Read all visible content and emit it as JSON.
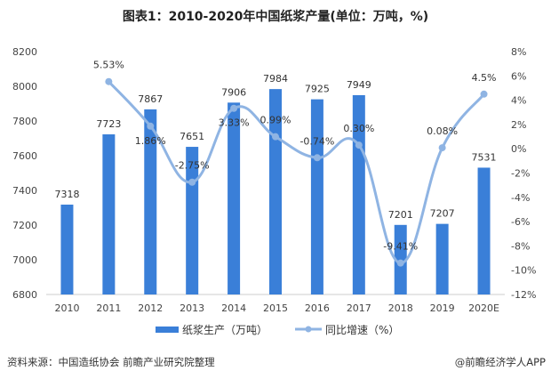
{
  "chart_data": {
    "type": "bar+line",
    "title": "图表1：2010-2020年中国纸浆产量(单位：万吨，%)",
    "categories": [
      "2010",
      "2011",
      "2012",
      "2013",
      "2014",
      "2015",
      "2016",
      "2017",
      "2018",
      "2019",
      "2020E"
    ],
    "series": [
      {
        "name": "纸浆生产（万吨）",
        "type": "bar",
        "axis": "left",
        "color": "#3a7fd8",
        "values": [
          7318,
          7723,
          7867,
          7651,
          7906,
          7984,
          7925,
          7949,
          7201,
          7207,
          7531
        ],
        "labels": [
          "7318",
          "7723",
          "7867",
          "7651",
          "7906",
          "7984",
          "7925",
          "7949",
          "7201",
          "7207",
          "7531"
        ]
      },
      {
        "name": "同比增速（%）",
        "type": "line",
        "axis": "right",
        "color": "#8fb4e3",
        "values": [
          null,
          5.53,
          1.86,
          -2.75,
          3.33,
          0.99,
          -0.74,
          0.3,
          -9.41,
          0.08,
          4.5
        ],
        "labels": [
          "",
          "5.53%",
          "1.86%",
          "-2.75%",
          "3.33%",
          "0.99%",
          "-0.74%",
          "0.30%",
          "-9.41%",
          "0.08%",
          "4.5%"
        ]
      }
    ],
    "left_axis": {
      "range": [
        6800,
        8200
      ],
      "ticks": [
        "6800",
        "7000",
        "7200",
        "7400",
        "7600",
        "7800",
        "8000",
        "8200"
      ]
    },
    "right_axis": {
      "range": [
        -12,
        8
      ],
      "ticks": [
        "-12%",
        "-10%",
        "-8%",
        "-6%",
        "-4%",
        "-2%",
        "0%",
        "2%",
        "4%",
        "6%",
        "8%"
      ]
    },
    "grid": false,
    "legend": "bottom"
  },
  "source": "资料来源：中国造纸协会 前瞻产业研究院整理",
  "credit": "@前瞻经济学人APP"
}
